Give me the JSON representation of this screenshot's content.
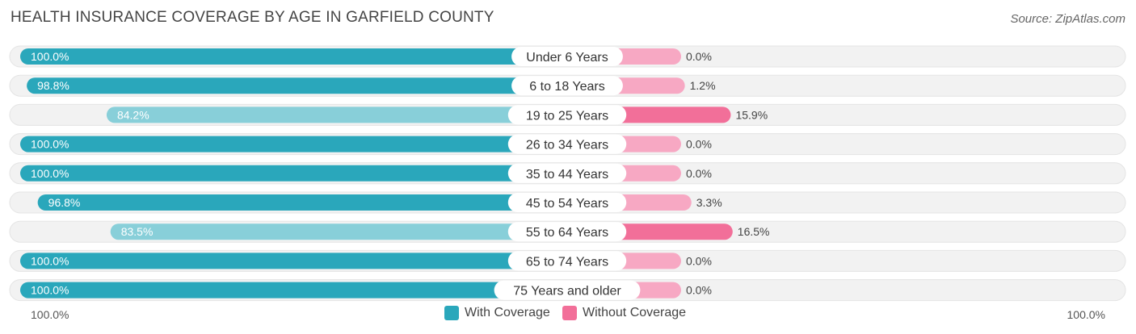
{
  "title": "HEALTH INSURANCE COVERAGE BY AGE IN GARFIELD COUNTY",
  "source": "Source: ZipAtlas.com",
  "colors": {
    "with_dark": "#2aa7bb",
    "with_light": "#88cfd9",
    "without_dark": "#f26f99",
    "without_light": "#f7a8c3",
    "row_bg": "#f2f2f2"
  },
  "legend": {
    "with": "With Coverage",
    "without": "Without Coverage"
  },
  "axis": {
    "left_label": "100.0%",
    "right_label": "100.0%"
  },
  "chart_data": {
    "type": "bar",
    "orientation": "horizontal-diverging",
    "title": "HEALTH INSURANCE COVERAGE BY AGE IN GARFIELD COUNTY",
    "categories": [
      "Under 6 Years",
      "6 to 18 Years",
      "19 to 25 Years",
      "26 to 34 Years",
      "35 to 44 Years",
      "45 to 54 Years",
      "55 to 64 Years",
      "65 to 74 Years",
      "75 Years and older"
    ],
    "series": [
      {
        "name": "With Coverage",
        "values": [
          100.0,
          98.8,
          84.2,
          100.0,
          100.0,
          96.8,
          83.5,
          100.0,
          100.0
        ],
        "labels": [
          "100.0%",
          "98.8%",
          "84.2%",
          "100.0%",
          "100.0%",
          "96.8%",
          "83.5%",
          "100.0%",
          "100.0%"
        ]
      },
      {
        "name": "Without Coverage",
        "values": [
          0.0,
          1.2,
          15.9,
          0.0,
          0.0,
          3.3,
          16.5,
          0.0,
          0.0
        ],
        "labels": [
          "0.0%",
          "1.2%",
          "15.9%",
          "0.0%",
          "0.0%",
          "3.3%",
          "16.5%",
          "0.0%",
          "0.0%"
        ]
      }
    ],
    "xlim": [
      0,
      100
    ]
  }
}
